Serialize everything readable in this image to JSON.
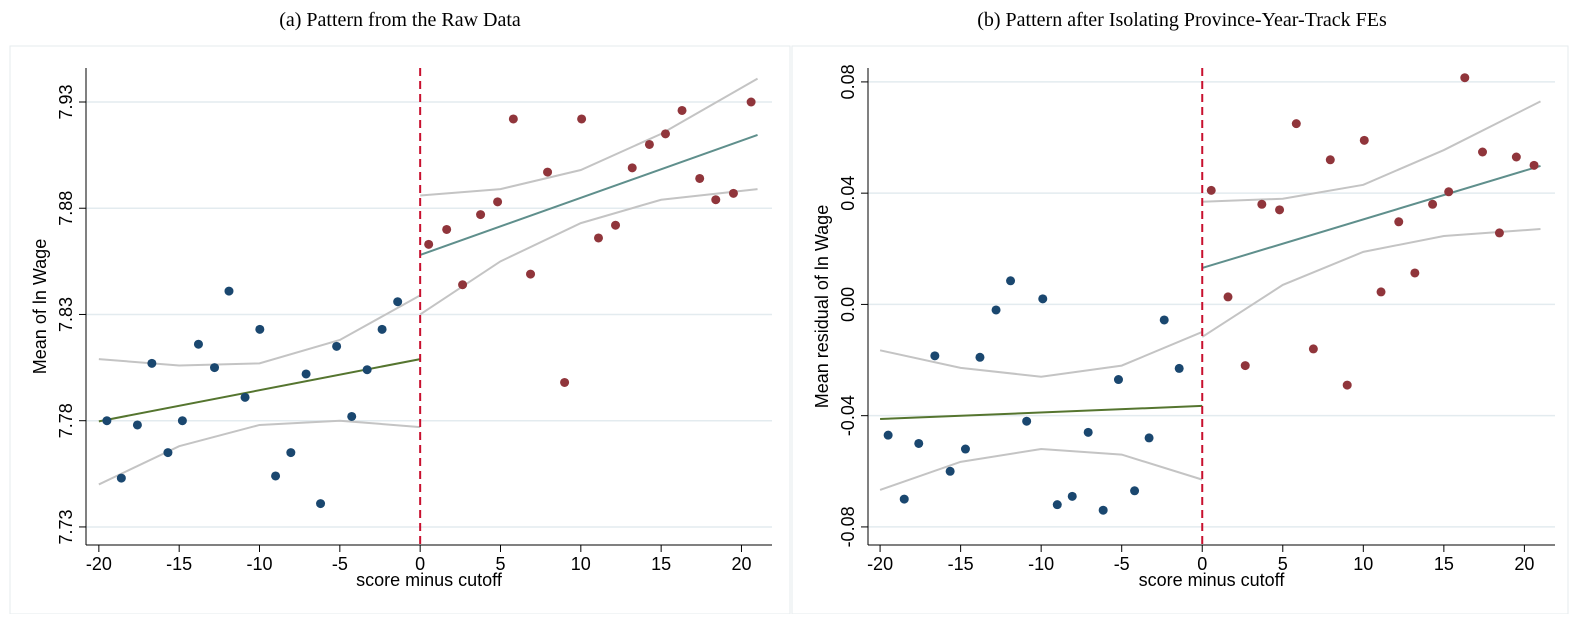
{
  "chart_data": [
    {
      "type": "scatter",
      "title": "(a) Pattern from the Raw Data",
      "xlabel": "score minus cutoff",
      "ylabel": "Mean of ln Wage",
      "xlim": [
        -20.8,
        21.9
      ],
      "ylim": [
        7.7215,
        7.946
      ],
      "xticks": [
        -20,
        -15,
        -10,
        -5,
        0,
        5,
        10,
        15,
        20
      ],
      "yticks": [
        7.73,
        7.78,
        7.83,
        7.88,
        7.93
      ],
      "grid": true,
      "vline": 0,
      "vline_color": "#c8102e",
      "series": [
        {
          "mode": "markers",
          "color": "#1a476f",
          "x": [
            -19.5,
            -18.6,
            -17.6,
            -16.7,
            -15.7,
            -14.8,
            -13.8,
            -12.8,
            -11.9,
            -10.9,
            -9.98,
            -9.0,
            -8.05,
            -7.1,
            -6.2,
            -5.2,
            -4.26,
            -3.3,
            -2.37,
            -1.4
          ],
          "values": [
            7.78,
            7.753,
            7.778,
            7.807,
            7.765,
            7.78,
            7.816,
            7.805,
            7.841,
            7.791,
            7.823,
            7.754,
            7.765,
            7.802,
            7.741,
            7.815,
            7.782,
            7.804,
            7.823,
            7.836
          ]
        },
        {
          "mode": "markers",
          "color": "#90353b",
          "x": [
            0.53,
            1.65,
            2.64,
            3.76,
            4.82,
            5.8,
            6.87,
            7.93,
            8.99,
            10.05,
            11.1,
            12.16,
            13.2,
            14.27,
            15.27,
            16.3,
            17.4,
            18.4,
            19.5,
            20.6
          ],
          "values": [
            7.863,
            7.87,
            7.844,
            7.877,
            7.883,
            7.922,
            7.849,
            7.897,
            7.798,
            7.922,
            7.866,
            7.872,
            7.899,
            7.91,
            7.915,
            7.926,
            7.894,
            7.884,
            7.887,
            7.93
          ]
        },
        {
          "mode": "line",
          "color": "#c4c4c4",
          "x": [
            -20,
            -15,
            -10,
            -5,
            0
          ],
          "values": [
            7.809,
            7.806,
            7.807,
            7.818,
            7.839
          ]
        },
        {
          "mode": "line",
          "color": "#c4c4c4",
          "x": [
            -20,
            -15,
            -10,
            -5,
            0
          ],
          "values": [
            7.75,
            7.768,
            7.778,
            7.78,
            7.777
          ]
        },
        {
          "mode": "line",
          "color": "#c4c4c4",
          "x": [
            0,
            5,
            10,
            15,
            21
          ],
          "values": [
            7.886,
            7.889,
            7.898,
            7.915,
            7.941
          ]
        },
        {
          "mode": "line",
          "color": "#c4c4c4",
          "x": [
            0,
            5,
            10,
            15,
            21
          ],
          "values": [
            7.83,
            7.855,
            7.873,
            7.884,
            7.889
          ]
        },
        {
          "mode": "line",
          "color": "#55752f",
          "x": [
            -20,
            0
          ],
          "values": [
            7.7797,
            7.809
          ]
        },
        {
          "mode": "line",
          "color": "#5f8f8c",
          "x": [
            0,
            21
          ],
          "values": [
            7.858,
            7.9145
          ]
        }
      ]
    },
    {
      "type": "scatter",
      "title": "(b) Pattern after Isolating Province-Year-Track FEs",
      "xlabel": "score minus cutoff",
      "ylabel": "Mean residual of ln Wage",
      "xlim": [
        -20.75,
        21.9
      ],
      "ylim": [
        -0.0865,
        0.085
      ],
      "xticks": [
        -20,
        -15,
        -10,
        -5,
        0,
        5,
        10,
        15,
        20
      ],
      "yticks": [
        -0.08,
        -0.04,
        {
          "value": 0,
          "label": "0.00"
        },
        0.04,
        0.08
      ],
      "grid": true,
      "vline": 0,
      "vline_color": "#c8102e",
      "series": [
        {
          "mode": "markers",
          "color": "#1a476f",
          "x": [
            -19.5,
            -18.5,
            -17.6,
            -16.6,
            -15.65,
            -14.7,
            -13.8,
            -12.8,
            -11.9,
            -10.9,
            -9.9,
            -9.0,
            -8.07,
            -7.08,
            -6.15,
            -5.2,
            -4.2,
            -3.3,
            -2.36,
            -1.43
          ],
          "values": [
            -0.047,
            -0.07,
            -0.05,
            -0.0185,
            -0.06,
            -0.052,
            -0.019,
            -0.002,
            0.0085,
            -0.042,
            0.002,
            -0.072,
            -0.069,
            -0.046,
            -0.074,
            -0.027,
            -0.067,
            -0.048,
            -0.0056,
            -0.023
          ]
        },
        {
          "mode": "markers",
          "color": "#90353b",
          "x": [
            0.56,
            1.6,
            2.67,
            3.7,
            4.8,
            5.84,
            6.9,
            7.95,
            9.0,
            10.06,
            11.1,
            12.2,
            13.2,
            14.3,
            15.3,
            16.3,
            17.4,
            18.45,
            19.5,
            20.6
          ],
          "values": [
            0.041,
            0.0027,
            -0.022,
            0.036,
            0.034,
            0.065,
            -0.016,
            0.052,
            -0.029,
            0.059,
            0.0045,
            0.0297,
            0.0113,
            0.036,
            0.0405,
            0.0815,
            0.0548,
            0.0257,
            0.053,
            0.05
          ]
        },
        {
          "mode": "line",
          "color": "#c4c4c4",
          "x": [
            -20,
            -15,
            -10,
            -5,
            0
          ],
          "values": [
            -0.0165,
            -0.0228,
            -0.026,
            -0.022,
            -0.0099
          ]
        },
        {
          "mode": "line",
          "color": "#c4c4c4",
          "x": [
            -20,
            -15,
            -10,
            -5,
            0
          ],
          "values": [
            -0.0667,
            -0.0566,
            -0.052,
            -0.054,
            -0.063
          ]
        },
        {
          "mode": "line",
          "color": "#c4c4c4",
          "x": [
            0,
            5,
            10,
            15,
            21
          ],
          "values": [
            0.0369,
            0.038,
            0.043,
            0.0555,
            0.073
          ]
        },
        {
          "mode": "line",
          "color": "#c4c4c4",
          "x": [
            0,
            5,
            10,
            15,
            21
          ],
          "values": [
            -0.0117,
            0.007,
            0.0189,
            0.0246,
            0.0271
          ]
        },
        {
          "mode": "line",
          "color": "#55752f",
          "x": [
            -20,
            0
          ],
          "values": [
            -0.0412,
            -0.0365
          ]
        },
        {
          "mode": "line",
          "color": "#5f8f8c",
          "x": [
            0,
            21
          ],
          "values": [
            0.0131,
            0.0498
          ]
        }
      ]
    }
  ]
}
